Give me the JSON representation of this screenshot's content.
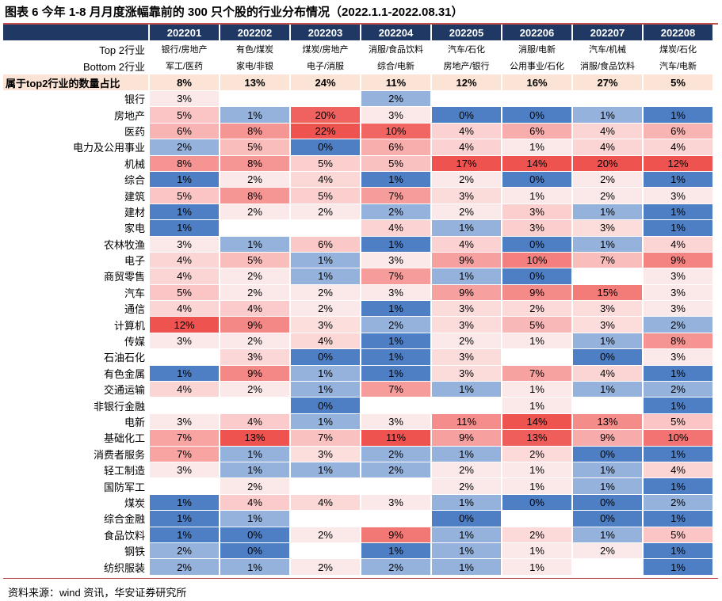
{
  "title": "图表 6 今年 1-8 月月度涨幅靠前的 300 只个股的行业分布情况（2022.1.1-2022.08.31）",
  "source": "资料来源：wind 资讯，华安证券研究所",
  "columns": [
    "202201",
    "202202",
    "202203",
    "202204",
    "202205",
    "202206",
    "202207",
    "202208"
  ],
  "top2_label": "Top 2行业",
  "top2": [
    "银行/房地产",
    "有色/煤炭",
    "煤炭/房地产",
    "消服/食品饮料",
    "汽车/石化",
    "消服/电新",
    "汽车/机械",
    "煤炭/石化"
  ],
  "bottom2_label": "Bottom 2行业",
  "bottom2": [
    "军工/医药",
    "家电/非银",
    "电子/消服",
    "综合/电新",
    "房地产/银行",
    "公用事业/石化",
    "消服/食品饮料",
    "汽车/电新"
  ],
  "share_label": "属于top2行业的数量占比",
  "share": [
    "8%",
    "13%",
    "24%",
    "11%",
    "12%",
    "16%",
    "27%",
    "5%"
  ],
  "colors": {
    "header_bg": "#1f3864",
    "share_bg": "#fbe4d5",
    "max": "#ef5350",
    "min": "#4e7fc4"
  },
  "rows": [
    {
      "name": "银行",
      "values": [
        3,
        null,
        null,
        2,
        null,
        null,
        null,
        null
      ]
    },
    {
      "name": "房地产",
      "values": [
        5,
        1,
        20,
        3,
        0,
        0,
        1,
        1
      ]
    },
    {
      "name": "医药",
      "values": [
        6,
        8,
        22,
        10,
        4,
        6,
        4,
        6
      ]
    },
    {
      "name": "电力及公用事业",
      "values": [
        2,
        5,
        0,
        6,
        4,
        1,
        4,
        4
      ]
    },
    {
      "name": "机械",
      "values": [
        8,
        8,
        5,
        5,
        17,
        14,
        20,
        12
      ]
    },
    {
      "name": "综合",
      "values": [
        1,
        2,
        4,
        1,
        2,
        0,
        2,
        1
      ]
    },
    {
      "name": "建筑",
      "values": [
        5,
        8,
        5,
        7,
        3,
        1,
        2,
        3
      ]
    },
    {
      "name": "建材",
      "values": [
        1,
        2,
        2,
        2,
        2,
        3,
        1,
        1
      ]
    },
    {
      "name": "家电",
      "values": [
        1,
        null,
        null,
        4,
        1,
        3,
        3,
        1
      ]
    },
    {
      "name": "农林牧渔",
      "values": [
        3,
        1,
        6,
        1,
        4,
        0,
        1,
        4
      ]
    },
    {
      "name": "电子",
      "values": [
        4,
        5,
        1,
        3,
        9,
        10,
        7,
        9
      ]
    },
    {
      "name": "商贸零售",
      "values": [
        4,
        2,
        1,
        7,
        1,
        0,
        null,
        3
      ]
    },
    {
      "name": "汽车",
      "values": [
        5,
        2,
        2,
        3,
        9,
        9,
        15,
        3
      ]
    },
    {
      "name": "通信",
      "values": [
        4,
        4,
        2,
        1,
        3,
        2,
        3,
        3
      ]
    },
    {
      "name": "计算机",
      "values": [
        12,
        9,
        3,
        2,
        3,
        5,
        3,
        2
      ]
    },
    {
      "name": "传媒",
      "values": [
        3,
        2,
        4,
        1,
        2,
        1,
        1,
        8
      ]
    },
    {
      "name": "石油石化",
      "values": [
        null,
        3,
        0,
        1,
        3,
        null,
        0,
        3
      ]
    },
    {
      "name": "有色金属",
      "values": [
        1,
        9,
        1,
        1,
        3,
        7,
        4,
        1
      ]
    },
    {
      "name": "交通运输",
      "values": [
        4,
        2,
        1,
        7,
        1,
        1,
        1,
        2
      ]
    },
    {
      "name": "非银行金融",
      "values": [
        null,
        null,
        0,
        null,
        null,
        1,
        null,
        1
      ]
    },
    {
      "name": "电新",
      "values": [
        3,
        4,
        1,
        3,
        11,
        14,
        13,
        5
      ]
    },
    {
      "name": "基础化工",
      "values": [
        7,
        13,
        7,
        11,
        9,
        13,
        9,
        10
      ]
    },
    {
      "name": "消费者服务",
      "values": [
        7,
        1,
        3,
        2,
        1,
        2,
        0,
        1
      ]
    },
    {
      "name": "轻工制造",
      "values": [
        3,
        1,
        1,
        2,
        2,
        1,
        1,
        4
      ]
    },
    {
      "name": "国防军工",
      "values": [
        null,
        2,
        null,
        null,
        2,
        1,
        1,
        1
      ]
    },
    {
      "name": "煤炭",
      "values": [
        1,
        4,
        4,
        3,
        1,
        0,
        0,
        2
      ]
    },
    {
      "name": "综合金融",
      "values": [
        1,
        1,
        null,
        null,
        0,
        null,
        0,
        1
      ]
    },
    {
      "name": "食品饮料",
      "values": [
        1,
        0,
        2,
        9,
        1,
        2,
        1,
        5
      ]
    },
    {
      "name": "钢铁",
      "values": [
        2,
        0,
        null,
        1,
        1,
        1,
        2,
        1
      ]
    },
    {
      "name": "纺织服装",
      "values": [
        2,
        1,
        2,
        2,
        1,
        1,
        null,
        1
      ]
    }
  ]
}
